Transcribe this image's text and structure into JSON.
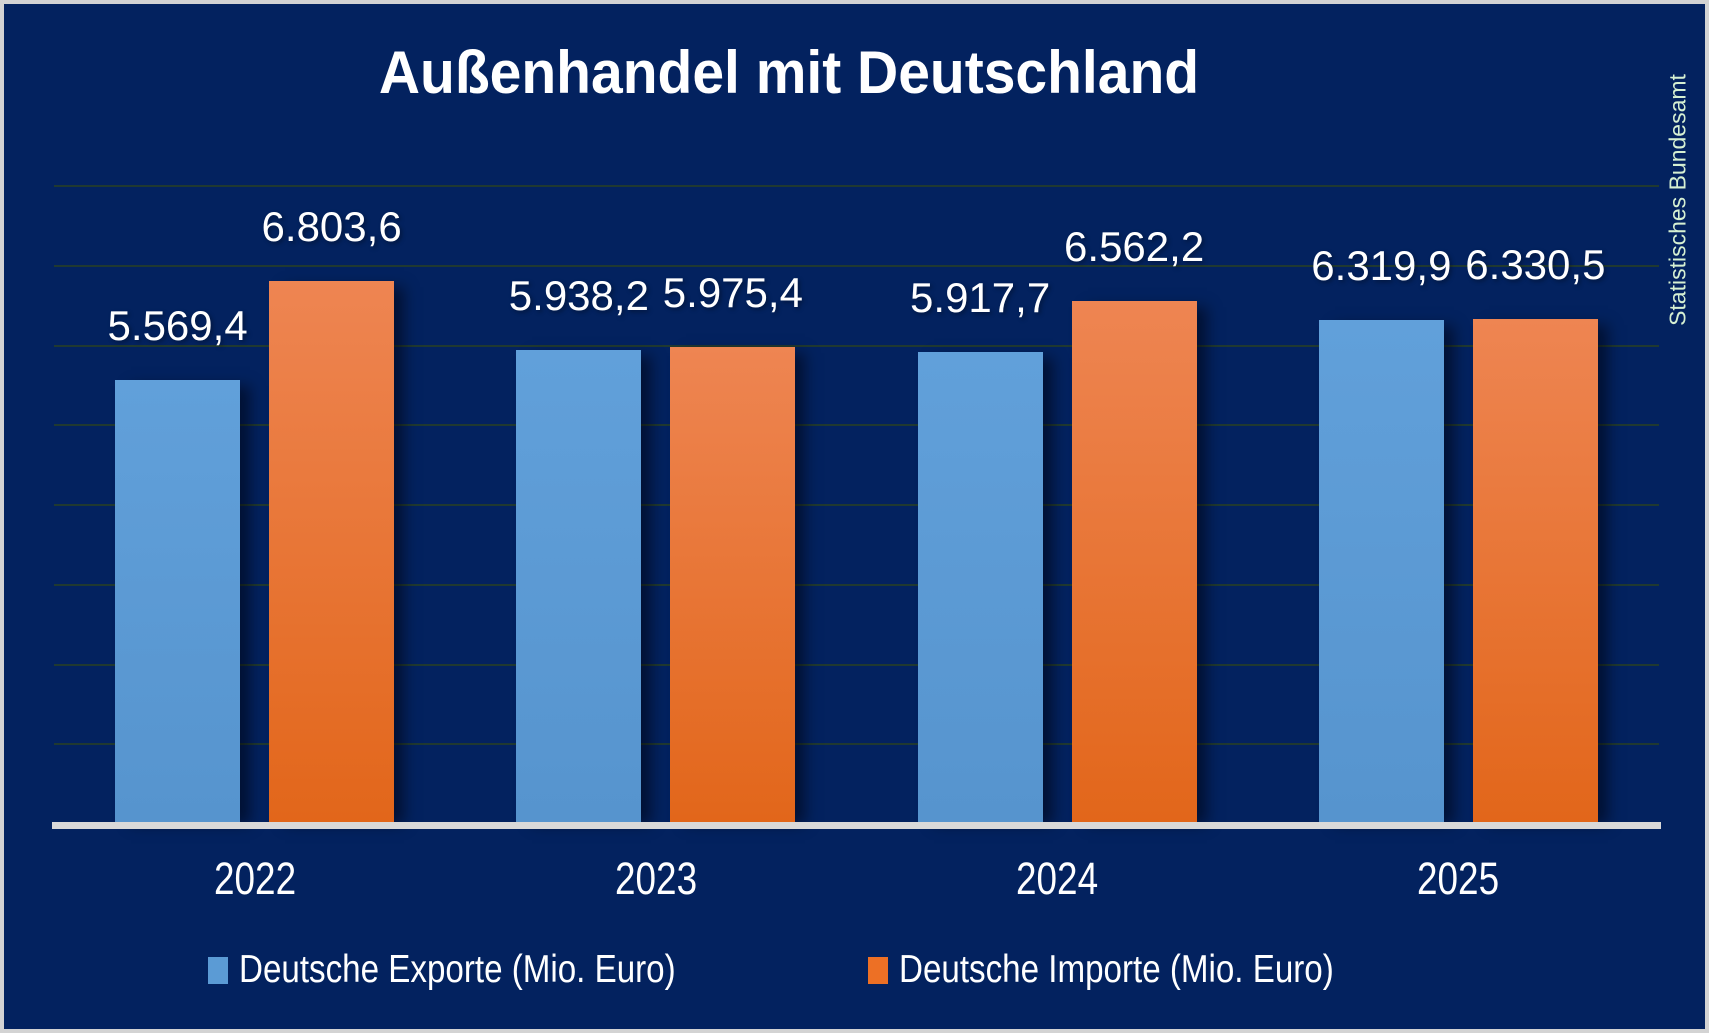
{
  "title": "Außenhandel mit Deutschland",
  "source_note": "Statistisches Bundesamt",
  "colors": {
    "background": "#03225F",
    "frame_border": "#D3D3D3",
    "gridline": "#203931",
    "axis_line": "#D9D9D9",
    "title_text": "#FFFFFF",
    "value_label_text": "#FFFFFF",
    "source_note_text": "#D6F0D2"
  },
  "chart_data": {
    "type": "bar",
    "title": "Außenhandel mit Deutschland",
    "xlabel": "",
    "ylabel": "",
    "categories": [
      "2022",
      "2023",
      "2024",
      "2025"
    ],
    "series": [
      {
        "name": "Deutsche Exporte (Mio. Euro)",
        "color": "#5B9BD5",
        "gradient": {
          "top": "#61A0DA",
          "bottom": "#5694CE"
        },
        "values": [
          5569.4,
          5938.2,
          5917.7,
          6319.9
        ],
        "labels": [
          "5.569,4",
          "5.938,2",
          "5.917,7",
          "6.319,9"
        ]
      },
      {
        "name": "Deutsche Importe (Mio. Euro)",
        "color": "#ED7025",
        "gradient": {
          "top": "#EE8552",
          "bottom": "#E2661A"
        },
        "values": [
          6803.6,
          5975.4,
          6562.2,
          6330.5
        ],
        "labels": [
          "6.803,6",
          "5.975,4",
          "6.562,2",
          "6.330,5"
        ]
      }
    ],
    "ylim": [
      0,
      8000
    ],
    "grid": true,
    "grid_interval": 1000,
    "y_axis_labels_shown": false,
    "legend_position": "bottom"
  }
}
